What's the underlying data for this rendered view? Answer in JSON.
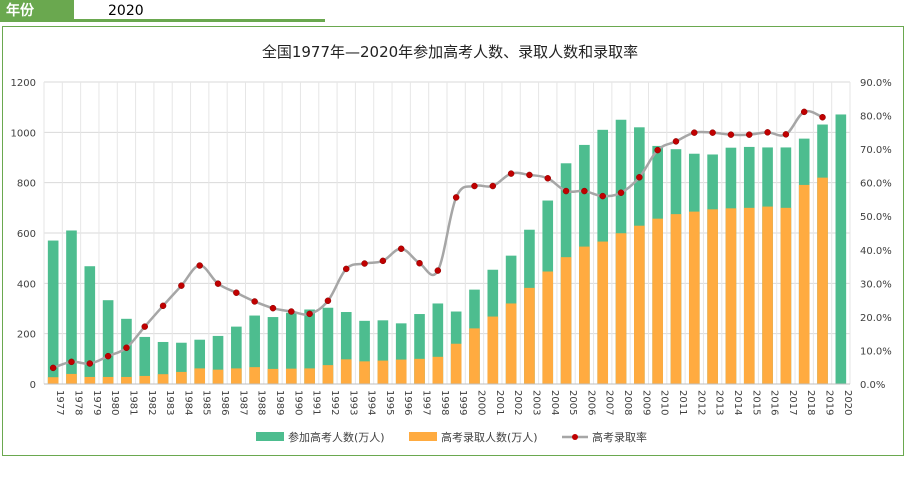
{
  "filter": {
    "label": "年份",
    "value": "2020"
  },
  "chart_data": {
    "type": "bar",
    "title": "全国1977年—2020年参加高考人数、录取人数和录取率",
    "categories": [
      "1977",
      "1978",
      "1979",
      "1980",
      "1981",
      "1982",
      "1983",
      "1984",
      "1985",
      "1986",
      "1987",
      "1988",
      "1989",
      "1990",
      "1991",
      "1992",
      "1993",
      "1994",
      "1995",
      "1996",
      "1997",
      "1998",
      "1999",
      "2000",
      "2001",
      "2002",
      "2003",
      "2004",
      "2005",
      "2006",
      "2007",
      "2008",
      "2009",
      "2010",
      "2011",
      "2012",
      "2013",
      "2014",
      "2015",
      "2016",
      "2017",
      "2018",
      "2019",
      "2020"
    ],
    "y_left": {
      "min": 0,
      "max": 1200,
      "ticks": [
        "0",
        "200",
        "400",
        "600",
        "800",
        "1000",
        "1200"
      ]
    },
    "y_right": {
      "min": 0,
      "max": 0.9,
      "ticks": [
        "0.0%",
        "10.0%",
        "20.0%",
        "30.0%",
        "40.0%",
        "50.0%",
        "60.0%",
        "70.0%",
        "80.0%",
        "90.0%"
      ]
    },
    "grid": true,
    "legend_position": "bottom",
    "series": [
      {
        "name": "参加高考人数(万人)",
        "type": "bar",
        "axis": "left",
        "color": "#4dbd8f",
        "values": [
          570,
          610,
          468,
          333,
          259,
          187,
          167,
          164,
          176,
          191,
          228,
          272,
          266,
          283,
          296,
          303,
          286,
          251,
          253,
          241,
          278,
          320,
          288,
          375,
          454,
          510,
          613,
          729,
          877,
          950,
          1010,
          1050,
          1020,
          946,
          933,
          915,
          912,
          939,
          942,
          940,
          940,
          975,
          1031,
          1071
        ]
      },
      {
        "name": "高考录取人数(万人)",
        "type": "bar",
        "axis": "left",
        "color": "#ffab40",
        "values": [
          27,
          40,
          28,
          28,
          28,
          32,
          39,
          48,
          62,
          57,
          62,
          67,
          60,
          61,
          62,
          75,
          98,
          90,
          93,
          97,
          100,
          108,
          160,
          221,
          268,
          320,
          382,
          447,
          504,
          546,
          566,
          599,
          629,
          657,
          675,
          685,
          694,
          698,
          700,
          705,
          700,
          791,
          820,
          null
        ]
      },
      {
        "name": "高考录取率",
        "type": "line",
        "axis": "right",
        "color": "#a6a6a6",
        "marker_color": "#c00000",
        "values": [
          0.048,
          0.066,
          0.061,
          0.083,
          0.108,
          0.171,
          0.233,
          0.293,
          0.353,
          0.299,
          0.272,
          0.246,
          0.226,
          0.216,
          0.209,
          0.248,
          0.343,
          0.359,
          0.367,
          0.403,
          0.36,
          0.338,
          0.556,
          0.59,
          0.59,
          0.627,
          0.623,
          0.613,
          0.575,
          0.575,
          0.56,
          0.57,
          0.616,
          0.697,
          0.723,
          0.749,
          0.749,
          0.743,
          0.743,
          0.75,
          0.744,
          0.811,
          0.795,
          null
        ]
      }
    ]
  }
}
